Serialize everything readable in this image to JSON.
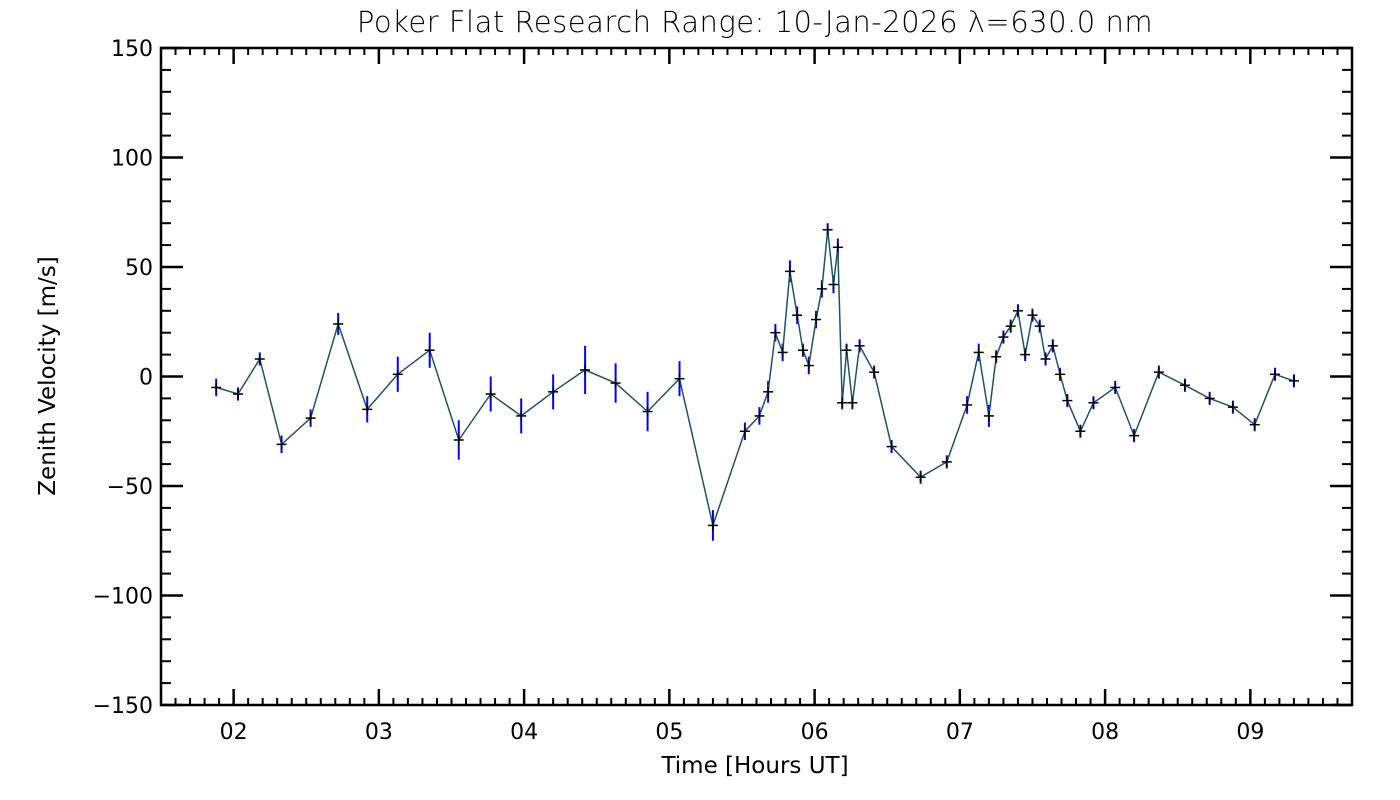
{
  "colors": {
    "background": "#ffffff",
    "axes": "#000000",
    "line": "#1f5560",
    "error_bar": "#0000ff",
    "marker": "#000000"
  },
  "chart_data": {
    "type": "line",
    "title": "Poker Flat Research Range: 10-Jan-2026 λ=630.0 nm",
    "xlabel": "Time [Hours UT]",
    "ylabel": "Zenith Velocity [m/s]",
    "xlim": [
      1.5,
      9.7
    ],
    "ylim": [
      -150,
      150
    ],
    "grid": false,
    "legend": "none",
    "x_ticks": [
      2,
      3,
      4,
      5,
      6,
      7,
      8,
      9
    ],
    "x_tick_labels": [
      "02",
      "03",
      "04",
      "05",
      "06",
      "07",
      "08",
      "09"
    ],
    "y_ticks": [
      -150,
      -100,
      -50,
      0,
      50,
      100,
      150
    ],
    "y_tick_labels": [
      "−150",
      "−100",
      "−50",
      "0",
      "50",
      "100",
      "150"
    ],
    "markers": "plus",
    "error_bars": true,
    "series": [
      {
        "x": [
          1.88,
          2.03,
          2.18,
          2.33,
          2.53,
          2.72,
          2.92,
          3.13,
          3.35,
          3.55,
          3.77,
          3.98,
          4.2,
          4.42,
          4.63,
          4.85,
          5.07,
          5.3,
          5.52,
          5.62,
          5.68,
          5.73,
          5.78,
          5.83,
          5.88,
          5.92,
          5.96,
          6.01,
          6.05,
          6.09,
          6.13,
          6.16,
          6.19,
          6.22,
          6.26,
          6.31,
          6.41,
          6.53,
          6.73,
          6.91,
          7.05,
          7.13,
          7.2,
          7.25,
          7.3,
          7.35,
          7.4,
          7.45,
          7.5,
          7.55,
          7.59,
          7.64,
          7.69,
          7.74,
          7.83,
          7.92,
          8.07,
          8.2,
          8.37,
          8.55,
          8.72,
          8.88,
          9.03,
          9.17,
          9.3
        ],
        "y": [
          -5,
          -8,
          8,
          -31,
          -19,
          24,
          -15,
          1,
          12,
          -29,
          -8,
          -18,
          -7,
          3,
          -3,
          -16,
          -1,
          -68,
          -25,
          -18,
          -7,
          20,
          11,
          48,
          28,
          12,
          5,
          26,
          40,
          67,
          42,
          59,
          -12,
          12,
          -12,
          14,
          2,
          -32,
          -46,
          -39,
          -13,
          11,
          -18,
          9,
          18,
          23,
          30,
          10,
          28,
          23,
          8,
          14,
          1,
          -11,
          -25,
          -12,
          -5,
          -27,
          2,
          -4,
          -10,
          -14,
          -22,
          1,
          -2
        ],
        "err": [
          4,
          3,
          3,
          4,
          4,
          5,
          6,
          8,
          8,
          9,
          8,
          8,
          8,
          11,
          9,
          9,
          8,
          7,
          4,
          4,
          5,
          4,
          4,
          5,
          4,
          3,
          4,
          4,
          4,
          3,
          4,
          4,
          3,
          3,
          3,
          3,
          3,
          3,
          3,
          3,
          4,
          4,
          5,
          3,
          3,
          3,
          3,
          3,
          3,
          3,
          3,
          3,
          3,
          3,
          3,
          3,
          3,
          3,
          3,
          3,
          3,
          3,
          3,
          3,
          3
        ]
      }
    ]
  }
}
